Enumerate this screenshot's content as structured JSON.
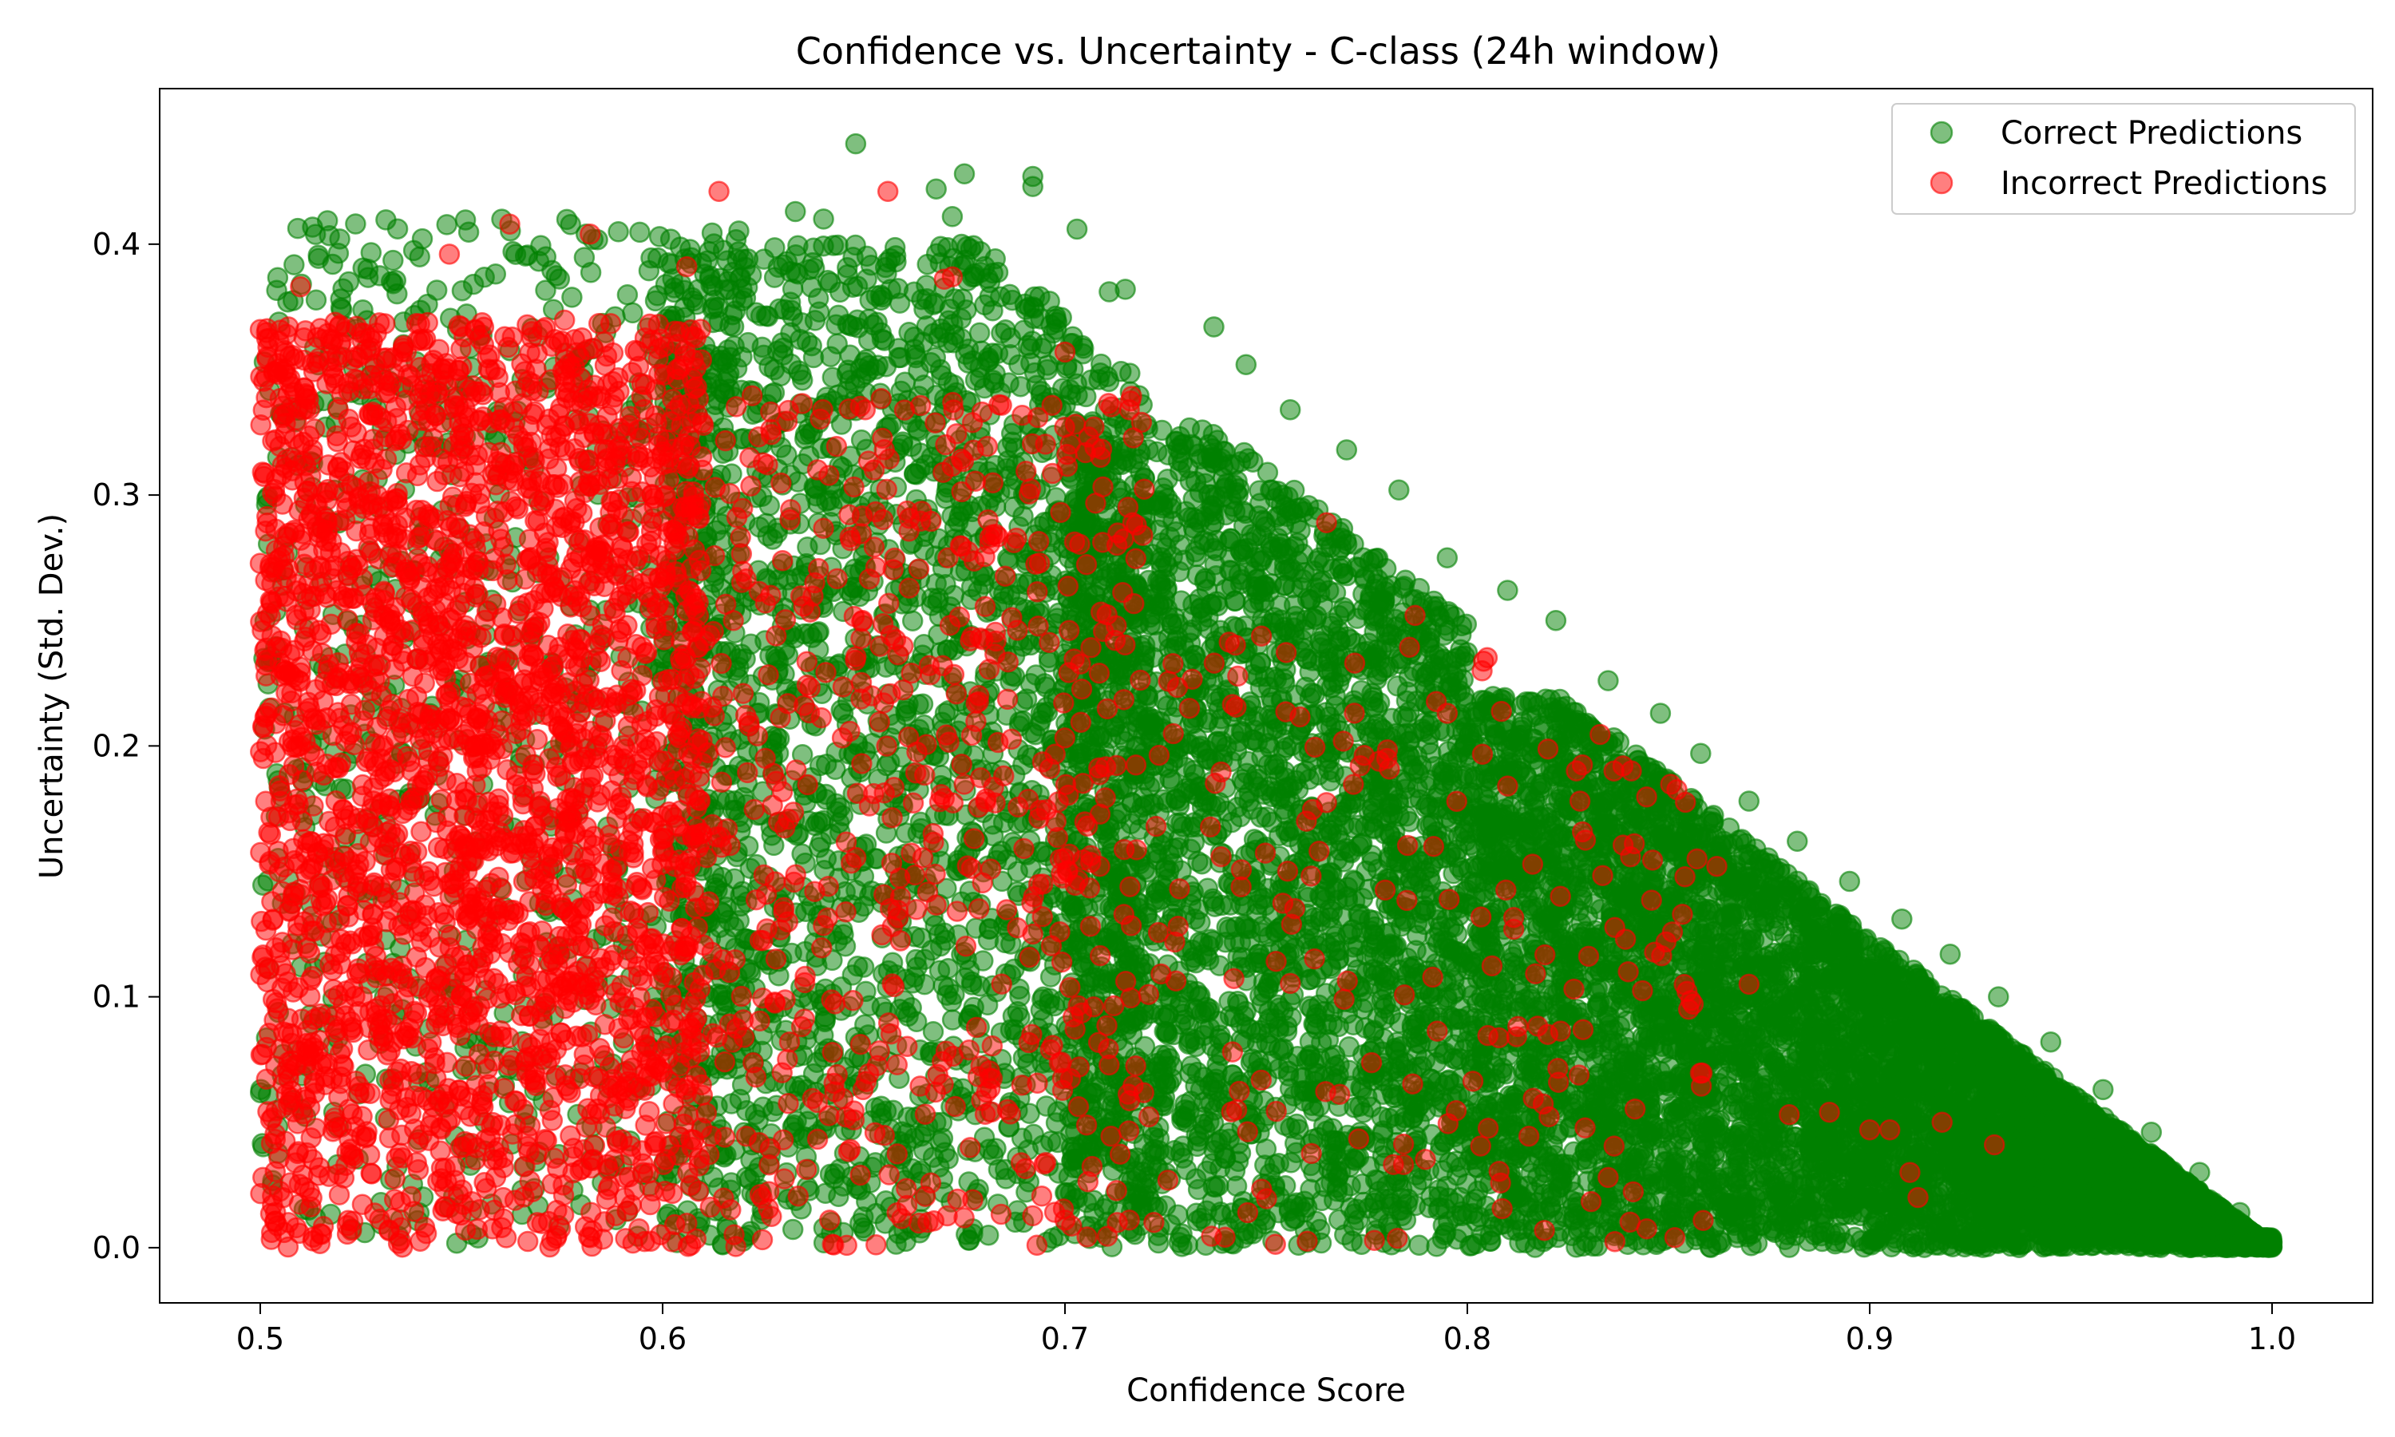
{
  "chart_data": {
    "type": "scatter",
    "title": "Confidence vs. Uncertainty - C-class (24h window)",
    "xlabel": "Confidence Score",
    "ylabel": "Uncertainty (Std. Dev.)",
    "xlim": [
      0.475,
      1.025
    ],
    "ylim": [
      -0.022,
      0.462
    ],
    "xticks": [
      0.5,
      0.6,
      0.7,
      0.8,
      0.9,
      1.0
    ],
    "xtick_labels": [
      "0.5",
      "0.6",
      "0.7",
      "0.8",
      "0.9",
      "1.0"
    ],
    "yticks": [
      0.0,
      0.1,
      0.2,
      0.3,
      0.4
    ],
    "ytick_labels": [
      "0.0",
      "0.1",
      "0.2",
      "0.3",
      "0.4"
    ],
    "grid": false,
    "legend_position": "top-right",
    "marker_alpha": 0.5,
    "series": [
      {
        "name": "Correct Predictions",
        "color": "#008000",
        "points": [
          [
            0.648,
            0.44
          ],
          [
            0.675,
            0.428
          ],
          [
            0.692,
            0.427
          ],
          [
            0.692,
            0.423
          ],
          [
            0.668,
            0.422
          ],
          [
            0.633,
            0.413
          ],
          [
            0.64,
            0.41
          ],
          [
            0.672,
            0.411
          ],
          [
            0.703,
            0.406
          ],
          [
            0.581,
            0.404
          ],
          [
            0.602,
            0.402
          ],
          [
            0.553,
            0.384
          ],
          [
            0.522,
            0.385
          ],
          [
            0.518,
            0.392
          ],
          [
            0.571,
            0.395
          ],
          [
            0.715,
            0.382
          ],
          [
            0.711,
            0.381
          ],
          [
            0.745,
            0.352
          ],
          [
            0.737,
            0.367
          ],
          [
            0.756,
            0.334
          ],
          [
            0.77,
            0.318
          ],
          [
            0.783,
            0.302
          ],
          [
            0.795,
            0.275
          ],
          [
            0.81,
            0.262
          ],
          [
            0.822,
            0.25
          ],
          [
            0.835,
            0.226
          ],
          [
            0.848,
            0.213
          ],
          [
            0.858,
            0.197
          ],
          [
            0.87,
            0.178
          ],
          [
            0.882,
            0.162
          ],
          [
            0.895,
            0.146
          ],
          [
            0.908,
            0.131
          ],
          [
            0.92,
            0.117
          ],
          [
            0.932,
            0.1
          ],
          [
            0.945,
            0.082
          ],
          [
            0.958,
            0.063
          ],
          [
            0.97,
            0.046
          ],
          [
            0.982,
            0.03
          ],
          [
            0.992,
            0.014
          ],
          [
            1.0,
            0.002
          ],
          [
            0.735,
            0.001
          ],
          [
            0.788,
            0.001
          ],
          [
            0.813,
            0.002
          ],
          [
            0.842,
            0.003
          ],
          [
            0.601,
            0.007
          ],
          [
            0.66,
            0.007
          ],
          [
            0.681,
            0.005
          ],
          [
            0.526,
            0.006
          ],
          [
            0.512,
            0.015
          ],
          [
            0.503,
            0.025
          ],
          [
            0.547,
            0.016
          ],
          [
            0.53,
            0.018
          ],
          [
            0.585,
            0.026
          ],
          [
            0.502,
            0.061
          ],
          [
            0.501,
            0.353
          ]
        ],
        "clouds": [
          {
            "xmin": 0.5,
            "xmax": 0.62,
            "ymin": 0.0,
            "ymax": 0.41,
            "count": 900
          },
          {
            "xmin": 0.6,
            "xmax": 0.72,
            "ymin": 0.0,
            "ymax": 0.4,
            "count": 2400
          },
          {
            "xmin": 0.7,
            "xmax": 0.8,
            "ymin": 0.0,
            "ymax": 0.33,
            "count": 2800
          },
          {
            "xmin": 0.8,
            "xmax": 0.9,
            "ymin": 0.0,
            "ymax": 0.22,
            "count": 3200
          },
          {
            "xmin": 0.9,
            "xmax": 1.0,
            "ymin": 0.0,
            "ymax": 0.12,
            "count": 3400
          }
        ]
      },
      {
        "name": "Incorrect Predictions",
        "color": "#ff0000",
        "points": [
          [
            0.562,
            0.408
          ],
          [
            0.614,
            0.421
          ],
          [
            0.656,
            0.421
          ],
          [
            0.547,
            0.396
          ],
          [
            0.582,
            0.404
          ],
          [
            0.51,
            0.383
          ],
          [
            0.67,
            0.386
          ],
          [
            0.5,
            0.366
          ],
          [
            0.507,
            0.367
          ],
          [
            0.606,
            0.391
          ],
          [
            0.716,
            0.334
          ],
          [
            0.719,
            0.329
          ],
          [
            0.7,
            0.357
          ],
          [
            0.765,
            0.289
          ],
          [
            0.787,
            0.252
          ],
          [
            0.772,
            0.233
          ],
          [
            0.795,
            0.213
          ],
          [
            0.78,
            0.195
          ],
          [
            0.81,
            0.184
          ],
          [
            0.828,
            0.178
          ],
          [
            0.862,
            0.152
          ],
          [
            0.84,
            0.11
          ],
          [
            0.855,
            0.095
          ],
          [
            0.88,
            0.053
          ],
          [
            0.89,
            0.054
          ],
          [
            0.9,
            0.047
          ],
          [
            0.905,
            0.047
          ],
          [
            0.918,
            0.05
          ],
          [
            0.931,
            0.041
          ],
          [
            0.91,
            0.03
          ],
          [
            0.912,
            0.02
          ],
          [
            0.835,
            0.028
          ],
          [
            0.713,
            0.01
          ],
          [
            0.716,
            0.011
          ],
          [
            0.7,
            0.011
          ],
          [
            0.582,
            0.004
          ],
          [
            0.551,
            0.007
          ],
          [
            0.535,
            0.008
          ],
          [
            0.507,
            0.01
          ],
          [
            0.56,
            0.008
          ],
          [
            0.672,
            0.387
          ],
          [
            0.604,
            0.35
          ],
          [
            0.76,
            0.17
          ],
          [
            0.82,
            0.085
          ],
          [
            0.87,
            0.105
          ]
        ],
        "clouds": [
          {
            "xmin": 0.5,
            "xmax": 0.61,
            "ymin": 0.0,
            "ymax": 0.37,
            "count": 2700
          },
          {
            "xmin": 0.61,
            "xmax": 0.72,
            "ymin": 0.0,
            "ymax": 0.34,
            "count": 600
          },
          {
            "xmin": 0.72,
            "xmax": 0.86,
            "ymin": 0.0,
            "ymax": 0.25,
            "count": 180
          }
        ]
      }
    ]
  }
}
